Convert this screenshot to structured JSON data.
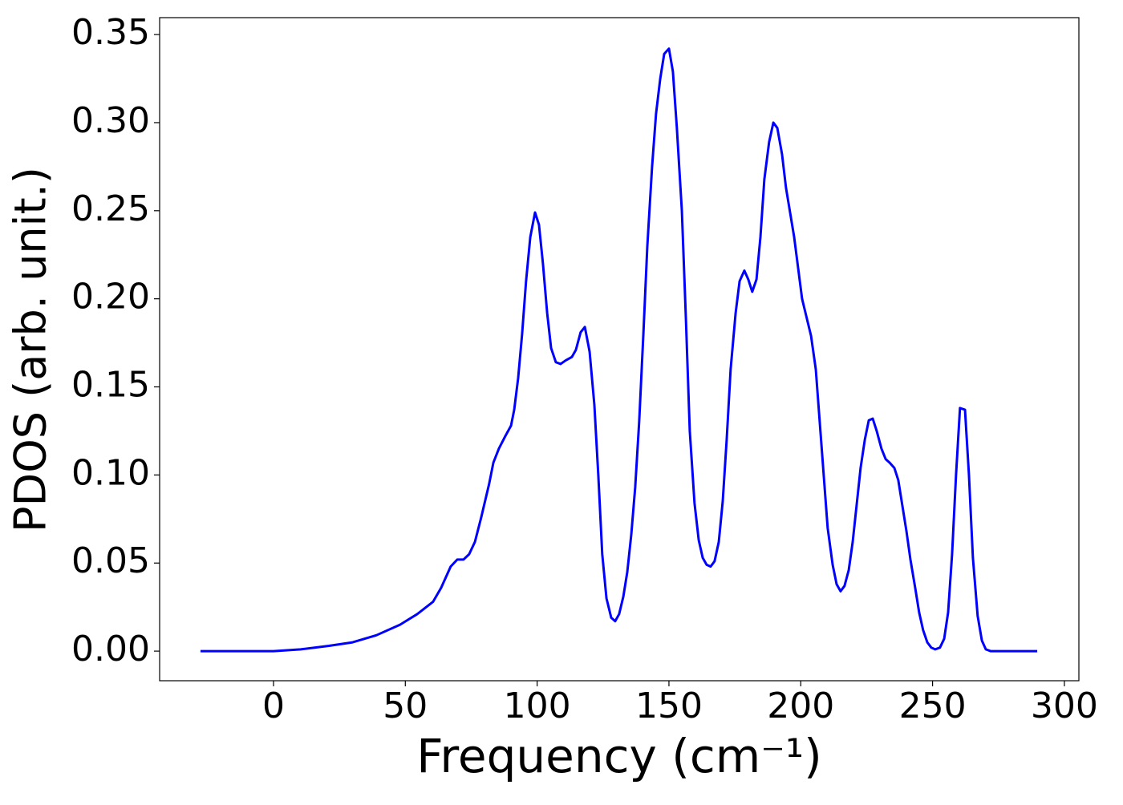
{
  "chart_data": {
    "type": "line",
    "xlabel": "Frequency (cm⁻¹)",
    "ylabel": "PDOS (arb. unit.)",
    "xlim": [
      -43.2,
      305.5
    ],
    "ylim": [
      -0.0168,
      0.3596
    ],
    "xticks": [
      0,
      50,
      100,
      150,
      200,
      250,
      300
    ],
    "yticks": [
      {
        "value": 0,
        "label": "0.00"
      },
      {
        "value": 0.05,
        "label": "0.05"
      },
      {
        "value": 0.1,
        "label": "0.10"
      },
      {
        "value": 0.15,
        "label": "0.15"
      },
      {
        "value": 0.2,
        "label": "0.20"
      },
      {
        "value": 0.25,
        "label": "0.25"
      },
      {
        "value": 0.3,
        "label": "0.30"
      },
      {
        "value": 0.35,
        "label": "0.35"
      }
    ],
    "color": "#0000ff",
    "x": [
      -27.7,
      0,
      10.3,
      21,
      30,
      39,
      48,
      54.5,
      60.5,
      63.6,
      67.2,
      69.7,
      72.1,
      74.2,
      76.4,
      78.8,
      81.8,
      83.4,
      85.5,
      87.9,
      90.1,
      91.3,
      92.8,
      94.3,
      95.8,
      97.4,
      99.2,
      100.7,
      102.2,
      103.8,
      105.3,
      107.1,
      108.9,
      110.8,
      113.2,
      114.7,
      116.5,
      118.1,
      119.9,
      121.7,
      123.2,
      124.7,
      126.3,
      128.1,
      129.6,
      131.1,
      132.7,
      134.2,
      135.7,
      137.2,
      138.7,
      140.3,
      141.8,
      143.6,
      145.1,
      146.7,
      148.2,
      150,
      151.5,
      153,
      154.9,
      156.4,
      157.9,
      159.7,
      161.3,
      162.8,
      164.3,
      165.8,
      167.3,
      168.9,
      170.4,
      171.9,
      173.4,
      175.3,
      176.8,
      178.6,
      180.1,
      181.6,
      183.2,
      184.7,
      186.2,
      188,
      189.6,
      191.1,
      192.9,
      194.4,
      197.5,
      200.5,
      203.9,
      205.7,
      207.2,
      208.7,
      210.2,
      212.1,
      213.6,
      215.1,
      216.6,
      218.2,
      219.7,
      221.2,
      222.7,
      224.3,
      225.8,
      227.3,
      228.8,
      230.6,
      232.2,
      233.7,
      235.5,
      237,
      238.5,
      240.1,
      241.6,
      243.4,
      244.9,
      246.4,
      248,
      249.5,
      251,
      252.8,
      254.4,
      255.9,
      257.4,
      258.9,
      260.4,
      262.3,
      263.8,
      265.3,
      267.1,
      268.7,
      270.2,
      272,
      289.7
    ],
    "values": [
      0,
      0,
      0.001,
      0.003,
      0.005,
      0.009,
      0.015,
      0.021,
      0.028,
      0.036,
      0.048,
      0.052,
      0.052,
      0.055,
      0.062,
      0.076,
      0.095,
      0.107,
      0.115,
      0.122,
      0.128,
      0.137,
      0.155,
      0.18,
      0.21,
      0.235,
      0.249,
      0.242,
      0.22,
      0.192,
      0.172,
      0.164,
      0.163,
      0.165,
      0.167,
      0.171,
      0.181,
      0.184,
      0.17,
      0.14,
      0.1,
      0.055,
      0.03,
      0.019,
      0.017,
      0.021,
      0.031,
      0.045,
      0.066,
      0.093,
      0.13,
      0.18,
      0.23,
      0.275,
      0.305,
      0.325,
      0.339,
      0.342,
      0.329,
      0.297,
      0.25,
      0.19,
      0.125,
      0.084,
      0.063,
      0.053,
      0.049,
      0.048,
      0.051,
      0.062,
      0.085,
      0.12,
      0.16,
      0.192,
      0.21,
      0.216,
      0.211,
      0.204,
      0.211,
      0.235,
      0.268,
      0.289,
      0.3,
      0.297,
      0.282,
      0.263,
      0.235,
      0.2,
      0.179,
      0.16,
      0.13,
      0.1,
      0.07,
      0.049,
      0.038,
      0.034,
      0.037,
      0.046,
      0.062,
      0.083,
      0.104,
      0.12,
      0.131,
      0.132,
      0.125,
      0.115,
      0.109,
      0.107,
      0.104,
      0.097,
      0.083,
      0.068,
      0.052,
      0.036,
      0.022,
      0.012,
      0.005,
      0.002,
      0.001,
      0.002,
      0.007,
      0.022,
      0.055,
      0.1,
      0.138,
      0.137,
      0.1,
      0.053,
      0.02,
      0.006,
      0.001,
      0,
      0
    ]
  }
}
